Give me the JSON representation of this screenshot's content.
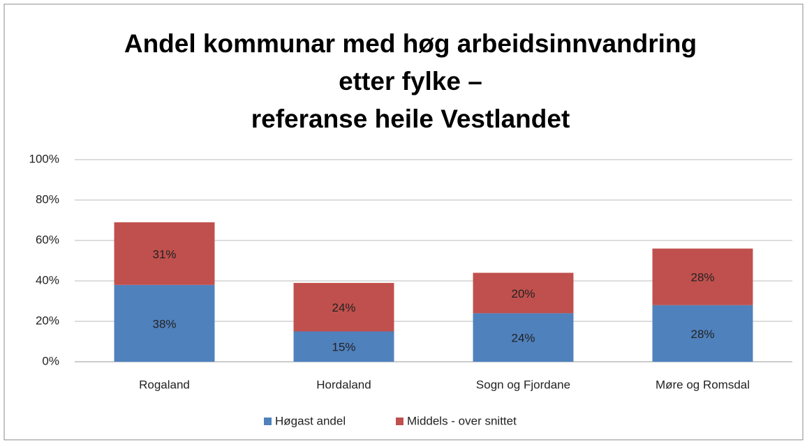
{
  "chart_data": {
    "type": "stacked_bar",
    "title": [
      "Andel kommunar med høg arbeidsinnvandring",
      "etter fylke –",
      "referanse heile Vestlandet"
    ],
    "categories": [
      "Rogaland",
      "Hordaland",
      "Sogn og Fjordane",
      "Møre og Romsdal"
    ],
    "series": [
      {
        "name": "Høgast andel",
        "color": "#4f81bd",
        "values": [
          38,
          15,
          24,
          28
        ],
        "value_labels": [
          "38%",
          "15%",
          "24%",
          "28%"
        ]
      },
      {
        "name": "Middels - over snittet",
        "color": "#c0504d",
        "values": [
          31,
          24,
          20,
          28
        ],
        "value_labels": [
          "31%",
          "24%",
          "20%",
          "28%"
        ]
      }
    ],
    "ylim": [
      0,
      100
    ],
    "yticks": [
      {
        "value": 0,
        "label": "0%"
      },
      {
        "value": 20,
        "label": "20%"
      },
      {
        "value": 40,
        "label": "40%"
      },
      {
        "value": 60,
        "label": "60%"
      },
      {
        "value": 80,
        "label": "80%"
      },
      {
        "value": 100,
        "label": "100%"
      }
    ],
    "grid": true,
    "legend": "bottom"
  }
}
